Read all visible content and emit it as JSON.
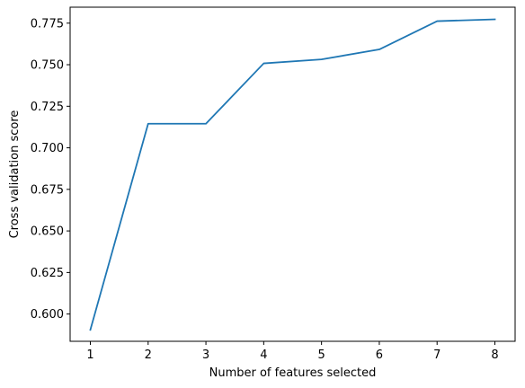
{
  "chart_data": {
    "type": "line",
    "title": "",
    "xlabel": "Number of features selected",
    "ylabel": "Cross validation score",
    "xlim": [
      0.65,
      8.35
    ],
    "ylim": [
      0.5836,
      0.7846
    ],
    "grid": false,
    "x": [
      1,
      2,
      3,
      4,
      5,
      6,
      7,
      8
    ],
    "xticks": [
      1,
      2,
      3,
      4,
      5,
      6,
      7,
      8
    ],
    "xtick_labels": [
      "1",
      "2",
      "3",
      "4",
      "5",
      "6",
      "7",
      "8"
    ],
    "yticks": [
      0.6,
      0.625,
      0.65,
      0.675,
      0.7,
      0.725,
      0.75,
      0.775
    ],
    "ytick_labels": [
      "0.600",
      "0.625",
      "0.650",
      "0.675",
      "0.700",
      "0.725",
      "0.750",
      "0.775"
    ],
    "series": [
      {
        "color": "#1f77b4",
        "values": [
          0.5905,
          0.7145,
          0.7145,
          0.7508,
          0.7532,
          0.7592,
          0.7762,
          0.7773
        ]
      }
    ]
  }
}
